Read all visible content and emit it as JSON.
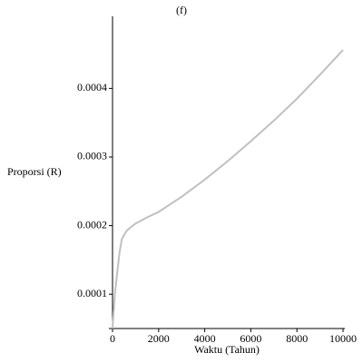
{
  "chart_data": {
    "type": "line",
    "title": "(f)",
    "x_label": "Waktu (Tahun)",
    "y_label": "Proporsi (R)",
    "x": [
      0,
      100,
      200,
      300,
      400,
      600,
      800,
      1000,
      1500,
      2000,
      3000,
      4000,
      5000,
      6000,
      7000,
      8000,
      9000,
      10000
    ],
    "series": [
      {
        "name": "R",
        "color": "#c0c0c0",
        "values": [
          5e-05,
          0.0001,
          0.00013,
          0.00016,
          0.00018,
          0.000192,
          0.000198,
          0.000203,
          0.000212,
          0.00022,
          0.000242,
          0.000267,
          0.000294,
          0.000323,
          0.000353,
          0.000385,
          0.00042,
          0.000456
        ]
      }
    ],
    "xlim": [
      0,
      10000
    ],
    "xticks": [
      0,
      2000,
      4000,
      6000,
      8000,
      10000
    ],
    "ylim": [
      5e-05,
      0.000505
    ],
    "yticks": [
      0.0001,
      0.0002,
      0.0003,
      0.0004
    ]
  }
}
